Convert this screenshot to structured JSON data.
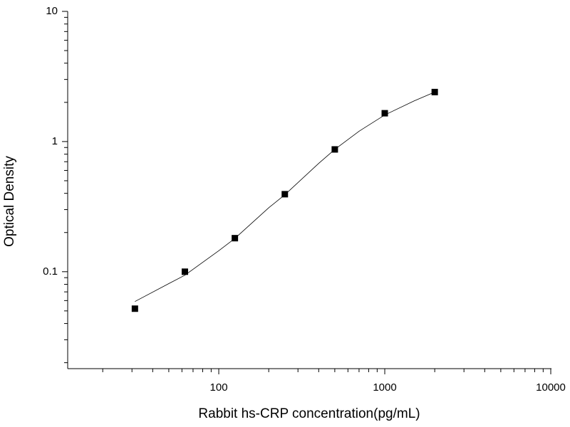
{
  "chart_data": {
    "type": "scatter",
    "xlabel": "Rabbit hs-CRP concentration(pg/mL)",
    "ylabel": "Optical Density",
    "xscale": "log",
    "yscale": "log",
    "xlim": [
      12.3,
      10000
    ],
    "ylim": [
      0.018,
      10
    ],
    "xticks": [
      100,
      1000,
      10000
    ],
    "yticks": [
      0.1,
      1,
      10
    ],
    "xminorticks": [
      20,
      30,
      40,
      50,
      60,
      70,
      80,
      90,
      200,
      300,
      400,
      500,
      600,
      700,
      800,
      900,
      2000,
      3000,
      4000,
      5000,
      6000,
      7000,
      8000,
      9000
    ],
    "yminorticks": [
      0.02,
      0.03,
      0.04,
      0.05,
      0.06,
      0.07,
      0.08,
      0.09,
      0.2,
      0.3,
      0.4,
      0.5,
      0.6,
      0.7,
      0.8,
      0.9,
      2,
      3,
      4,
      5,
      6,
      7,
      8,
      9
    ],
    "series": [
      {
        "type": "scatter",
        "color": "#000000",
        "x": [
          31.25,
          62.5,
          125,
          250,
          500,
          1000,
          2000
        ],
        "values": [
          0.052,
          0.1,
          0.181,
          0.394,
          0.87,
          1.65,
          2.4
        ]
      },
      {
        "type": "line",
        "color": "#000000",
        "x": [
          31.25,
          50,
          62.5,
          100,
          125,
          200,
          250,
          400,
          500,
          700,
          1000,
          1500,
          2000
        ],
        "values": [
          0.059,
          0.081,
          0.094,
          0.145,
          0.18,
          0.31,
          0.39,
          0.68,
          0.87,
          1.2,
          1.6,
          2.05,
          2.4
        ]
      }
    ]
  }
}
